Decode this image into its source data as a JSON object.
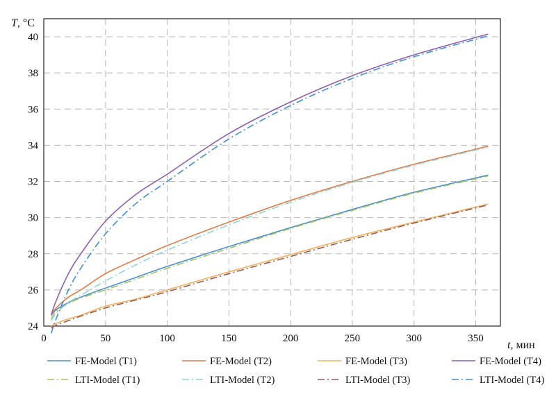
{
  "chart_data": {
    "type": "line",
    "xlabel_var": "t",
    "xlabel_unit": ", мин",
    "ylabel_var": "T",
    "ylabel_unit": ", °C",
    "xlim": [
      0,
      370
    ],
    "ylim": [
      24,
      41
    ],
    "xticks": [
      0,
      50,
      100,
      150,
      200,
      250,
      300,
      350
    ],
    "yticks": [
      24,
      26,
      28,
      30,
      32,
      34,
      36,
      38,
      40
    ],
    "grid": true,
    "legend": "bottom",
    "series": [
      {
        "name": "FE-Model (T1)",
        "color": "#4a90c8",
        "dash": "solid",
        "x": [
          6,
          10,
          20,
          30,
          50,
          75,
          100,
          150,
          200,
          250,
          300,
          360
        ],
        "y": [
          24.6,
          24.9,
          25.3,
          25.6,
          26.1,
          26.7,
          27.3,
          28.4,
          29.45,
          30.45,
          31.4,
          32.35
        ]
      },
      {
        "name": "FE-Model (T2)",
        "color": "#e07a45",
        "dash": "solid",
        "x": [
          6,
          10,
          20,
          30,
          50,
          75,
          100,
          150,
          200,
          250,
          300,
          360
        ],
        "y": [
          24.6,
          25.0,
          25.6,
          26.0,
          26.9,
          27.7,
          28.45,
          29.75,
          30.95,
          32.0,
          32.95,
          33.95
        ]
      },
      {
        "name": "FE-Model (T3)",
        "color": "#f2b25a",
        "dash": "solid",
        "x": [
          6,
          10,
          20,
          30,
          50,
          75,
          100,
          150,
          200,
          250,
          300,
          360
        ],
        "y": [
          24.0,
          24.15,
          24.4,
          24.6,
          25.1,
          25.5,
          26.0,
          27.0,
          27.95,
          28.9,
          29.75,
          30.75
        ]
      },
      {
        "name": "FE-Model (T4)",
        "color": "#8c5fb0",
        "dash": "solid",
        "x": [
          6,
          10,
          20,
          30,
          50,
          75,
          100,
          150,
          200,
          250,
          300,
          360
        ],
        "y": [
          24.6,
          25.4,
          26.9,
          28.0,
          29.8,
          31.3,
          32.4,
          34.65,
          36.4,
          37.85,
          39.0,
          40.15
        ]
      },
      {
        "name": "LTI-Model (T1)",
        "color": "#a8c060",
        "dash": "dashdot",
        "x": [
          6,
          10,
          20,
          30,
          50,
          75,
          100,
          150,
          200,
          250,
          300,
          360
        ],
        "y": [
          24.4,
          24.8,
          25.25,
          25.55,
          26.0,
          26.6,
          27.2,
          28.3,
          29.4,
          30.4,
          31.35,
          32.3
        ]
      },
      {
        "name": "LTI-Model (T2)",
        "color": "#8fd4d8",
        "dash": "dashdot",
        "x": [
          6,
          10,
          20,
          30,
          50,
          75,
          100,
          150,
          200,
          250,
          300,
          360
        ],
        "y": [
          24.3,
          24.7,
          25.3,
          25.7,
          26.5,
          27.4,
          28.2,
          29.6,
          30.85,
          31.95,
          32.9,
          33.9
        ]
      },
      {
        "name": "LTI-Model (T3)",
        "color": "#9a5a5a",
        "dash": "dashdot",
        "x": [
          6,
          10,
          20,
          30,
          50,
          75,
          100,
          150,
          200,
          250,
          300,
          360
        ],
        "y": [
          23.9,
          24.05,
          24.3,
          24.55,
          25.0,
          25.45,
          25.9,
          26.9,
          27.85,
          28.8,
          29.7,
          30.7
        ]
      },
      {
        "name": "LTI-Model (T4)",
        "color": "#3f8fd6",
        "dash": "dashdot",
        "x": [
          6,
          10,
          20,
          30,
          50,
          75,
          100,
          150,
          200,
          250,
          300,
          360
        ],
        "y": [
          23.6,
          24.4,
          26.0,
          27.2,
          29.1,
          30.8,
          32.0,
          34.35,
          36.2,
          37.7,
          38.9,
          40.05
        ]
      }
    ]
  }
}
